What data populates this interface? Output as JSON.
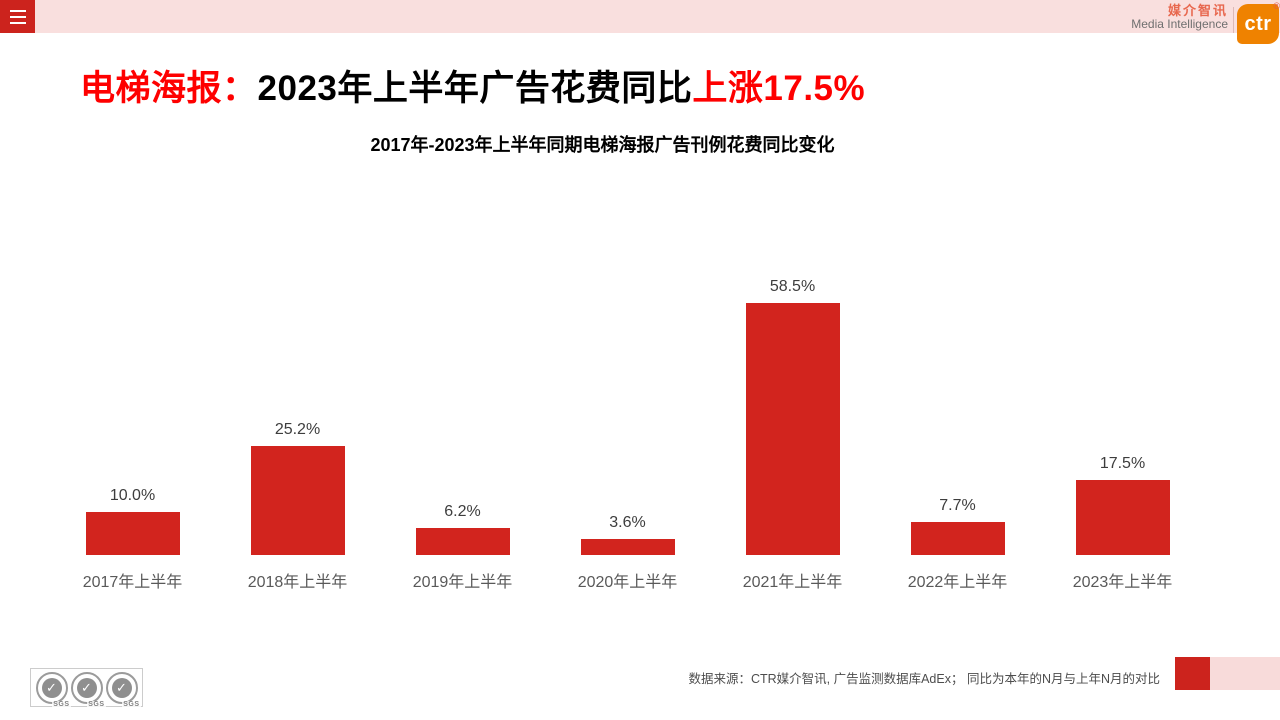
{
  "topbar": {
    "brand_cn": "媒介智讯",
    "brand_en": "Media Intelligence",
    "logo_text": "ctr",
    "reg_mark": "®"
  },
  "title": {
    "part1_red": "电梯海报：",
    "part2_black": "2023年上半年广告花费同比",
    "part3_red": "上涨17.5%"
  },
  "chart_data": {
    "type": "bar",
    "title": "2017年-2023年上半年同期电梯海报广告刊例花费同比变化",
    "categories": [
      "2017年上半年",
      "2018年上半年",
      "2019年上半年",
      "2020年上半年",
      "2021年上半年",
      "2022年上半年",
      "2023年上半年"
    ],
    "values": [
      10.0,
      25.2,
      6.2,
      3.6,
      58.5,
      7.7,
      17.5
    ],
    "value_labels": [
      "10.0%",
      "25.2%",
      "6.2%",
      "3.6%",
      "58.5%",
      "7.7%",
      "17.5%"
    ],
    "unit": "%",
    "bar_color": "#d2241e",
    "ylim": [
      0,
      65
    ],
    "grid": false,
    "legend": false,
    "xlabel": "",
    "ylabel": ""
  },
  "footer": {
    "source_text": "数据来源：CTR媒介智讯, 广告监测数据库AdEx；  同比为本年的N月与上年N月的对比",
    "sgs_label": "SGS",
    "check_glyph": "✓"
  }
}
